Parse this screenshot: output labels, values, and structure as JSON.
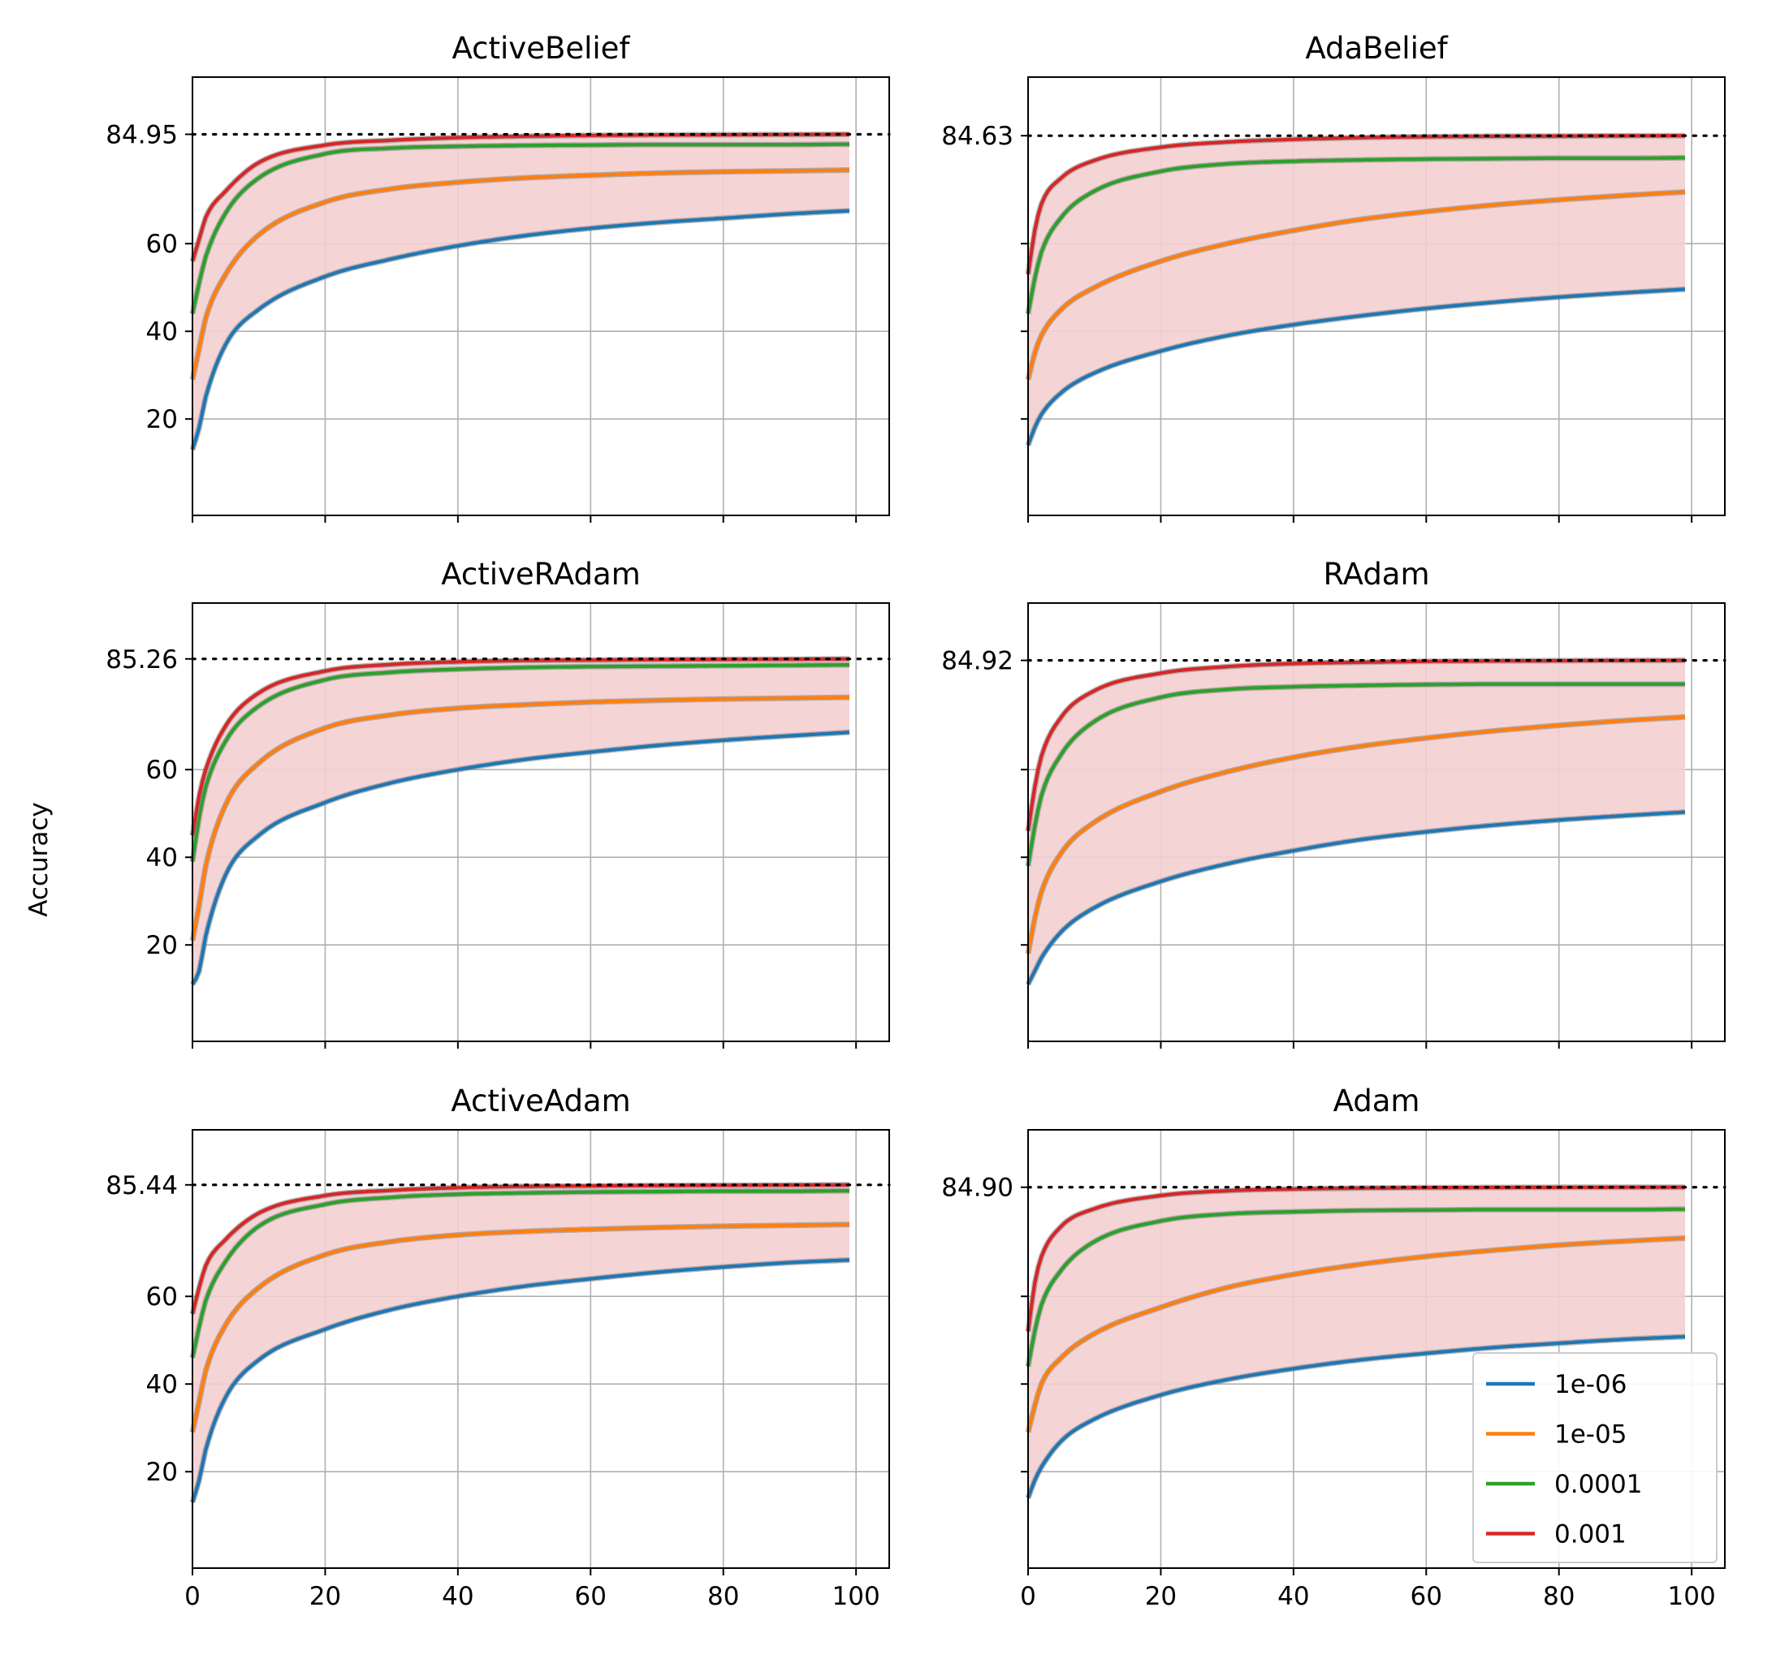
{
  "figure": {
    "ylabel": "Accuracy",
    "xlim": [
      0,
      105
    ],
    "ylim": [
      -2,
      98
    ],
    "x_ticks": [
      0,
      20,
      40,
      60,
      80,
      100
    ],
    "y_ticks": [
      20,
      40,
      60
    ],
    "grid": true,
    "legend": {
      "location": "lower-right of panel 6",
      "entries": [
        {
          "label": "1e-06",
          "color": "#1f77b4"
        },
        {
          "label": "1e-05",
          "color": "#ff7f0e"
        },
        {
          "label": "0.0001",
          "color": "#2ca02c"
        },
        {
          "label": "0.001",
          "color": "#d62728"
        }
      ]
    },
    "band_color": "#f4cfd2",
    "reference_line_style": "dotted black at best final accuracy"
  },
  "chart_data": [
    {
      "type": "line",
      "title": "ActiveBelief",
      "best_label": "84.95",
      "best": 84.95,
      "x": [
        0,
        1,
        2,
        5,
        10,
        20,
        30,
        40,
        50,
        60,
        70,
        80,
        90,
        99
      ],
      "series": [
        {
          "name": "1e-06",
          "values": [
            13,
            18,
            25,
            37,
            45,
            52.5,
            56.5,
            59.5,
            61.8,
            63.5,
            64.8,
            65.8,
            66.8,
            67.5
          ]
        },
        {
          "name": "1e-05",
          "values": [
            29,
            36,
            43,
            53,
            62,
            69.5,
            72.5,
            74,
            75,
            75.6,
            76.1,
            76.4,
            76.6,
            76.8
          ]
        },
        {
          "name": "0.0001",
          "values": [
            44,
            51,
            57,
            67,
            75,
            80.5,
            81.8,
            82.2,
            82.4,
            82.5,
            82.6,
            82.6,
            82.6,
            82.7
          ]
        },
        {
          "name": "0.001",
          "values": [
            56,
            61,
            66,
            72,
            78.5,
            82.5,
            83.6,
            84.2,
            84.5,
            84.7,
            84.8,
            84.85,
            84.9,
            84.95
          ]
        }
      ]
    },
    {
      "type": "line",
      "title": "AdaBelief",
      "best_label": "84.63",
      "best": 84.63,
      "x": [
        0,
        1,
        2,
        5,
        10,
        20,
        30,
        40,
        50,
        60,
        70,
        80,
        90,
        99
      ],
      "series": [
        {
          "name": "1e-06",
          "values": [
            14,
            18,
            21,
            26,
            30.5,
            35.5,
            39,
            41.5,
            43.5,
            45.2,
            46.6,
            47.8,
            48.8,
            49.6
          ]
        },
        {
          "name": "1e-05",
          "values": [
            29,
            35,
            39,
            45,
            50,
            56,
            60,
            63,
            65.5,
            67.3,
            68.8,
            70,
            71,
            71.8
          ]
        },
        {
          "name": "0.0001",
          "values": [
            44,
            52,
            58,
            66,
            72,
            76.5,
            78.2,
            78.8,
            79.1,
            79.3,
            79.4,
            79.5,
            79.5,
            79.6
          ]
        },
        {
          "name": "0.001",
          "values": [
            53,
            63,
            69,
            75,
            79,
            82,
            83.2,
            83.8,
            84.2,
            84.4,
            84.5,
            84.55,
            84.6,
            84.63
          ]
        }
      ]
    },
    {
      "type": "line",
      "title": "ActiveRAdam",
      "best_label": "85.26",
      "best": 85.26,
      "x": [
        0,
        1,
        2,
        5,
        10,
        20,
        30,
        40,
        50,
        60,
        70,
        80,
        90,
        99
      ],
      "series": [
        {
          "name": "1e-06",
          "values": [
            11,
            14,
            22,
            36,
            45,
            52.5,
            57,
            60,
            62.3,
            64,
            65.5,
            66.7,
            67.7,
            68.5
          ]
        },
        {
          "name": "1e-05",
          "values": [
            21,
            29,
            38,
            52,
            61.5,
            69.5,
            72.5,
            74,
            74.8,
            75.4,
            75.8,
            76.1,
            76.3,
            76.5
          ]
        },
        {
          "name": "0.0001",
          "values": [
            39,
            49,
            56,
            66.5,
            74.5,
            80.5,
            82.2,
            82.9,
            83.3,
            83.5,
            83.6,
            83.7,
            83.8,
            83.9
          ]
        },
        {
          "name": "0.001",
          "values": [
            45,
            54,
            60,
            70,
            77.5,
            82.5,
            84,
            84.6,
            84.9,
            85,
            85.1,
            85.15,
            85.2,
            85.26
          ]
        }
      ]
    },
    {
      "type": "line",
      "title": "RAdam",
      "best_label": "84.92",
      "best": 84.92,
      "x": [
        0,
        1,
        2,
        5,
        10,
        20,
        30,
        40,
        50,
        60,
        70,
        80,
        90,
        99
      ],
      "series": [
        {
          "name": "1e-06",
          "values": [
            11,
            14,
            17,
            23,
            28.5,
            34.5,
            38.5,
            41.5,
            44,
            45.8,
            47.3,
            48.5,
            49.5,
            50.3
          ]
        },
        {
          "name": "1e-05",
          "values": [
            18,
            26,
            32,
            41,
            48,
            55,
            59.5,
            62.8,
            65.3,
            67.2,
            68.8,
            70.1,
            71.2,
            72
          ]
        },
        {
          "name": "0.0001",
          "values": [
            38,
            47,
            54,
            63.5,
            71,
            76.5,
            78.3,
            78.9,
            79.2,
            79.4,
            79.5,
            79.5,
            79.5,
            79.5
          ]
        },
        {
          "name": "0.001",
          "values": [
            46,
            56,
            63,
            72,
            78,
            82,
            83.5,
            84.2,
            84.5,
            84.7,
            84.8,
            84.85,
            84.9,
            84.92
          ]
        }
      ]
    },
    {
      "type": "line",
      "title": "ActiveAdam",
      "best_label": "85.44",
      "best": 85.44,
      "x": [
        0,
        1,
        2,
        5,
        10,
        20,
        30,
        40,
        50,
        60,
        70,
        80,
        90,
        99
      ],
      "series": [
        {
          "name": "1e-06",
          "values": [
            13,
            18,
            25,
            37,
            45.5,
            52.5,
            57,
            60,
            62.3,
            64,
            65.5,
            66.7,
            67.7,
            68.3
          ]
        },
        {
          "name": "1e-05",
          "values": [
            29,
            36,
            43,
            53.5,
            62,
            69.5,
            72.5,
            74,
            74.8,
            75.3,
            75.7,
            76,
            76.2,
            76.4
          ]
        },
        {
          "name": "0.0001",
          "values": [
            46,
            53,
            59,
            68,
            76,
            81,
            82.6,
            83.3,
            83.6,
            83.8,
            83.9,
            84,
            84,
            84.1
          ]
        },
        {
          "name": "0.001",
          "values": [
            56,
            62,
            67,
            73,
            79,
            83,
            84.2,
            84.8,
            85.1,
            85.2,
            85.3,
            85.35,
            85.4,
            85.44
          ]
        }
      ]
    },
    {
      "type": "line",
      "title": "Adam",
      "best_label": "84.90",
      "best": 84.9,
      "x": [
        0,
        1,
        2,
        5,
        10,
        20,
        30,
        40,
        50,
        60,
        70,
        80,
        90,
        99
      ],
      "series": [
        {
          "name": "1e-06",
          "values": [
            14,
            18,
            21,
            27,
            32,
            37.5,
            41,
            43.5,
            45.5,
            47,
            48.3,
            49.3,
            50.2,
            50.8
          ]
        },
        {
          "name": "1e-05",
          "values": [
            29,
            35,
            40,
            46,
            51.5,
            57.5,
            62,
            65,
            67.3,
            69.1,
            70.5,
            71.7,
            72.6,
            73.3
          ]
        },
        {
          "name": "0.0001",
          "values": [
            44,
            52,
            58,
            66,
            72.5,
            77.2,
            78.8,
            79.3,
            79.6,
            79.7,
            79.8,
            79.8,
            79.8,
            79.9
          ]
        },
        {
          "name": "0.001",
          "values": [
            52,
            63,
            69,
            76,
            80,
            83,
            84.1,
            84.5,
            84.7,
            84.8,
            84.85,
            84.88,
            84.9,
            84.9
          ]
        }
      ]
    }
  ]
}
